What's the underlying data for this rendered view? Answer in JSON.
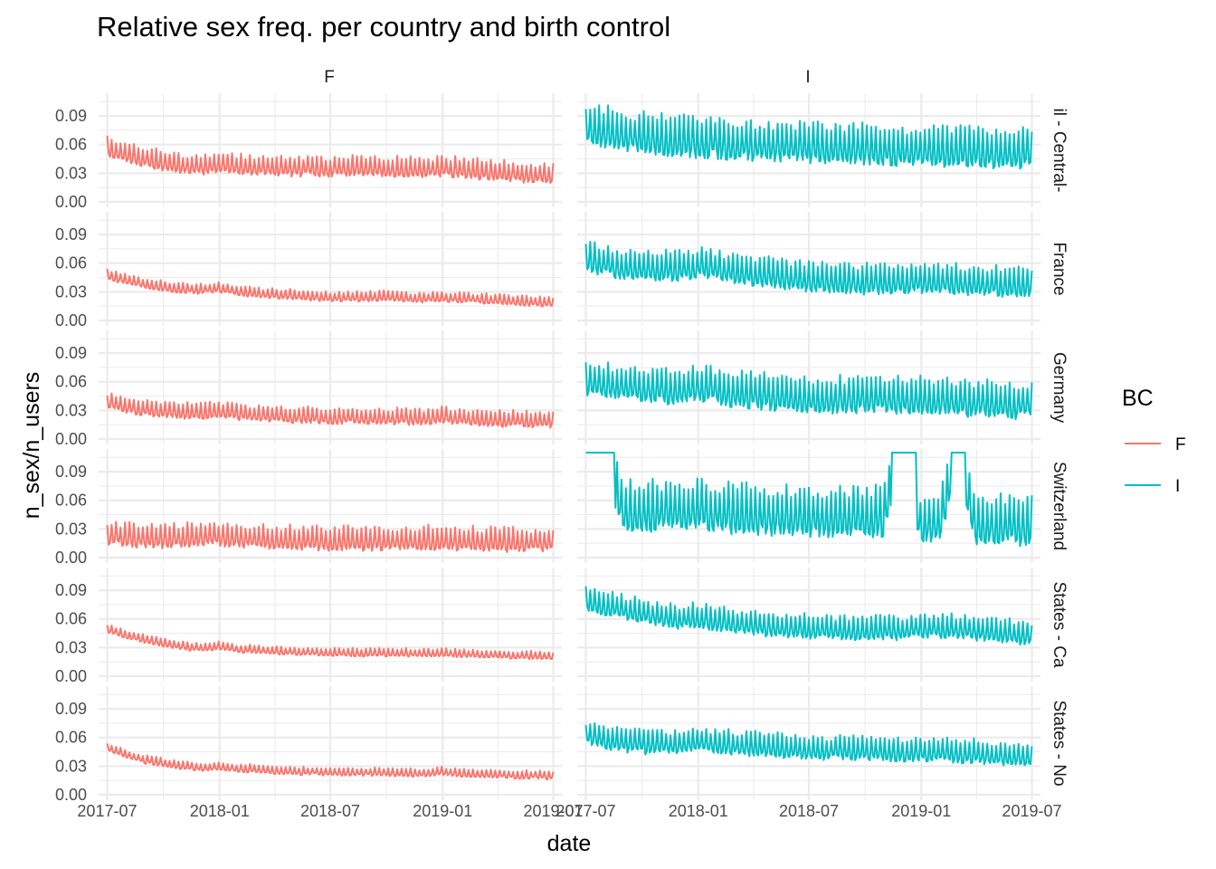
{
  "chart_data": {
    "type": "line",
    "title": "Relative sex freq. per country and birth control",
    "xlabel": "date",
    "ylabel": "n_sex/n_users",
    "x_ticks": [
      "2017-07",
      "2018-01",
      "2018-07",
      "2019-01",
      "2019-07"
    ],
    "x_range": [
      "2017-07-01",
      "2019-07-01"
    ],
    "y_ticks": [
      "0.00",
      "0.03",
      "0.06",
      "0.09"
    ],
    "ylim": [
      0,
      0.11
    ],
    "grid": true,
    "legend": {
      "title": "BC",
      "position": "right",
      "items": [
        {
          "label": "F",
          "color": "#F8766D"
        },
        {
          "label": "I",
          "color": "#00BFC4"
        }
      ]
    },
    "facet_columns": [
      "F",
      "I"
    ],
    "facet_rows": [
      "il - Central-",
      "France",
      "Germany",
      "Switzerland",
      "States - Ca",
      "States - No"
    ],
    "panels": [
      {
        "row": 0,
        "col": "F",
        "color": "#F8766D",
        "values_monthly": [
          0.058,
          0.052,
          0.047,
          0.043,
          0.04,
          0.039,
          0.04,
          0.039,
          0.038,
          0.038,
          0.037,
          0.037,
          0.037,
          0.038,
          0.038,
          0.037,
          0.036,
          0.036,
          0.037,
          0.036,
          0.034,
          0.033,
          0.031,
          0.03,
          0.03
        ],
        "oscillation": 0.01
      },
      {
        "row": 0,
        "col": "I",
        "color": "#00BFC4",
        "values_monthly": [
          0.08,
          0.078,
          0.074,
          0.072,
          0.07,
          0.068,
          0.067,
          0.066,
          0.065,
          0.064,
          0.063,
          0.062,
          0.062,
          0.061,
          0.06,
          0.06,
          0.06,
          0.058,
          0.058,
          0.058,
          0.057,
          0.057,
          0.056,
          0.056,
          0.056
        ],
        "oscillation": 0.02
      },
      {
        "row": 1,
        "col": "F",
        "color": "#F8766D",
        "values_monthly": [
          0.048,
          0.043,
          0.039,
          0.036,
          0.034,
          0.033,
          0.035,
          0.031,
          0.029,
          0.028,
          0.027,
          0.026,
          0.025,
          0.025,
          0.025,
          0.026,
          0.024,
          0.024,
          0.025,
          0.024,
          0.023,
          0.022,
          0.021,
          0.02,
          0.02
        ],
        "oscillation": 0.005
      },
      {
        "row": 1,
        "col": "I",
        "color": "#00BFC4",
        "values_monthly": [
          0.066,
          0.062,
          0.058,
          0.057,
          0.058,
          0.057,
          0.06,
          0.057,
          0.054,
          0.052,
          0.05,
          0.048,
          0.046,
          0.045,
          0.044,
          0.043,
          0.043,
          0.044,
          0.044,
          0.043,
          0.043,
          0.042,
          0.041,
          0.04,
          0.04
        ],
        "oscillation": 0.015
      },
      {
        "row": 2,
        "col": "F",
        "color": "#F8766D",
        "values_monthly": [
          0.04,
          0.036,
          0.033,
          0.031,
          0.03,
          0.029,
          0.031,
          0.028,
          0.027,
          0.026,
          0.025,
          0.025,
          0.024,
          0.024,
          0.024,
          0.024,
          0.023,
          0.023,
          0.025,
          0.023,
          0.022,
          0.021,
          0.021,
          0.02,
          0.02
        ],
        "oscillation": 0.008
      },
      {
        "row": 2,
        "col": "I",
        "color": "#00BFC4",
        "values_monthly": [
          0.062,
          0.06,
          0.058,
          0.057,
          0.056,
          0.055,
          0.058,
          0.055,
          0.052,
          0.05,
          0.049,
          0.048,
          0.047,
          0.046,
          0.046,
          0.046,
          0.046,
          0.045,
          0.046,
          0.045,
          0.043,
          0.042,
          0.041,
          0.04,
          0.04
        ],
        "oscillation": 0.018
      },
      {
        "row": 3,
        "col": "F",
        "color": "#F8766D",
        "values_monthly": [
          0.025,
          0.024,
          0.023,
          0.022,
          0.023,
          0.024,
          0.025,
          0.023,
          0.022,
          0.021,
          0.021,
          0.02,
          0.02,
          0.02,
          0.02,
          0.02,
          0.02,
          0.02,
          0.021,
          0.02,
          0.019,
          0.019,
          0.018,
          0.018,
          0.018
        ],
        "oscillation": 0.012
      },
      {
        "row": 3,
        "col": "I",
        "color": "#00BFC4",
        "values_monthly": [
          0.11,
          0.11,
          0.055,
          0.052,
          0.054,
          0.055,
          0.056,
          0.053,
          0.051,
          0.05,
          0.049,
          0.048,
          0.048,
          0.047,
          0.047,
          0.047,
          0.048,
          0.11,
          0.042,
          0.041,
          0.11,
          0.04,
          0.04,
          0.039,
          0.038
        ],
        "oscillation": 0.025,
        "saturated_spans": [
          [
            0.0,
            0.066
          ],
          [
            0.684,
            0.743
          ],
          [
            0.817,
            0.85
          ]
        ]
      },
      {
        "row": 4,
        "col": "F",
        "color": "#F8766D",
        "values_monthly": [
          0.05,
          0.044,
          0.039,
          0.035,
          0.032,
          0.03,
          0.032,
          0.029,
          0.028,
          0.027,
          0.026,
          0.026,
          0.025,
          0.025,
          0.025,
          0.025,
          0.025,
          0.024,
          0.025,
          0.024,
          0.023,
          0.023,
          0.022,
          0.022,
          0.021
        ],
        "oscillation": 0.004
      },
      {
        "row": 4,
        "col": "I",
        "color": "#00BFC4",
        "values_monthly": [
          0.08,
          0.076,
          0.072,
          0.068,
          0.065,
          0.062,
          0.064,
          0.06,
          0.057,
          0.055,
          0.054,
          0.053,
          0.052,
          0.051,
          0.05,
          0.05,
          0.05,
          0.05,
          0.053,
          0.052,
          0.052,
          0.05,
          0.048,
          0.046,
          0.045
        ],
        "oscillation": 0.012
      },
      {
        "row": 5,
        "col": "F",
        "color": "#F8766D",
        "values_monthly": [
          0.05,
          0.043,
          0.037,
          0.034,
          0.031,
          0.029,
          0.03,
          0.028,
          0.027,
          0.026,
          0.025,
          0.025,
          0.024,
          0.024,
          0.024,
          0.024,
          0.023,
          0.023,
          0.025,
          0.023,
          0.022,
          0.022,
          0.021,
          0.021,
          0.02
        ],
        "oscillation": 0.004
      },
      {
        "row": 5,
        "col": "I",
        "color": "#00BFC4",
        "values_monthly": [
          0.065,
          0.061,
          0.057,
          0.055,
          0.055,
          0.055,
          0.058,
          0.056,
          0.054,
          0.053,
          0.052,
          0.051,
          0.05,
          0.049,
          0.048,
          0.048,
          0.048,
          0.047,
          0.048,
          0.047,
          0.046,
          0.045,
          0.044,
          0.043,
          0.043
        ],
        "oscillation": 0.012
      }
    ]
  }
}
